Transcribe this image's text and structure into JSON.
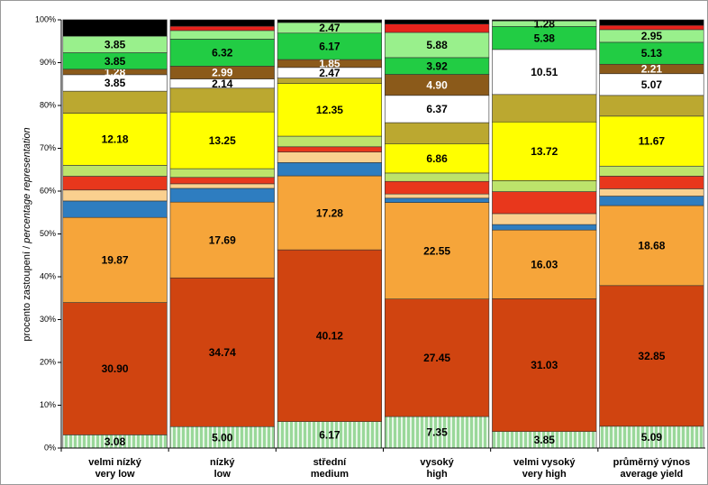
{
  "chart_data": {
    "type": "stacked_bar",
    "y_label": [
      "procento zastoupení /",
      "percentage representation"
    ],
    "categories": [
      [
        "velmi nízký",
        "very low"
      ],
      [
        "nízký",
        "low"
      ],
      [
        "střední",
        "medium"
      ],
      [
        "vysoký",
        "high"
      ],
      [
        "velmi vysoký",
        "very high"
      ],
      [
        "průměrný výnos",
        "average yield"
      ]
    ],
    "ylim": [
      0,
      100
    ],
    "yticks": [
      {
        "value": 0,
        "label": "0%"
      },
      {
        "value": 10,
        "label": "10%"
      },
      {
        "value": 20,
        "label": "20%"
      },
      {
        "value": 30,
        "label": "30%"
      },
      {
        "value": 40,
        "label": "40%"
      },
      {
        "value": 50,
        "label": "50%"
      },
      {
        "value": 60,
        "label": "60%"
      },
      {
        "value": 70,
        "label": "70%"
      },
      {
        "value": 80,
        "label": "80%"
      },
      {
        "value": 90,
        "label": "90%"
      },
      {
        "value": 100,
        "label": "100%"
      }
    ],
    "series": [
      {
        "color": "#9ad89a",
        "pattern": "stripes",
        "label_color": "#000",
        "values": [
          3.08,
          5.0,
          6.17,
          7.35,
          3.85,
          5.09
        ],
        "value_labels": [
          "3.08",
          "5.00",
          "6.17",
          "7.35",
          "3.85",
          "5.09"
        ]
      },
      {
        "color": "#d04410",
        "label_color": "#000",
        "values": [
          30.9,
          34.74,
          40.12,
          27.45,
          31.03,
          32.85
        ],
        "value_labels": [
          "30.90",
          "34.74",
          "40.12",
          "27.45",
          "31.03",
          "32.85"
        ]
      },
      {
        "color": "#f6a53a",
        "label_color": "#000",
        "values": [
          19.87,
          17.69,
          17.28,
          22.55,
          16.03,
          18.68
        ],
        "value_labels": [
          "19.87",
          "17.69",
          "17.28",
          "22.55",
          "16.03",
          "18.68"
        ]
      },
      {
        "color": "#2e7dc0",
        "values": [
          3.85,
          3.21,
          3.09,
          1.0,
          1.28,
          2.21
        ]
      },
      {
        "color": "#fad08f",
        "values": [
          2.56,
          1.07,
          2.47,
          0.98,
          2.56,
          1.72
        ]
      },
      {
        "color": "#e8371c",
        "values": [
          3.21,
          1.5,
          1.23,
          2.94,
          5.13,
          2.95
        ]
      },
      {
        "color": "#bde36b",
        "values": [
          2.56,
          2.03,
          2.47,
          1.96,
          2.56,
          2.34
        ]
      },
      {
        "color": "#ffff00",
        "label_color": "#000",
        "values": [
          12.18,
          13.25,
          12.35,
          6.86,
          13.72,
          11.67
        ],
        "value_labels": [
          "12.18",
          "13.25",
          "12.35",
          "6.86",
          "13.72",
          "11.67"
        ]
      },
      {
        "color": "#bba830",
        "values": [
          5.13,
          5.56,
          1.23,
          4.9,
          6.41,
          4.84
        ]
      },
      {
        "color": "#ffffff",
        "label_color": "#000",
        "values": [
          3.85,
          2.14,
          2.47,
          6.37,
          10.51,
          5.07
        ],
        "value_labels": [
          "3.85",
          "2.14",
          "2.47",
          "6.37",
          "10.51",
          "5.07"
        ]
      },
      {
        "color": "#8b5a1a",
        "label_color": "#fff",
        "values": [
          1.28,
          2.99,
          1.85,
          4.9,
          0,
          2.21
        ],
        "value_labels": [
          "1.28",
          "2.99",
          "1.85",
          "4.90",
          null,
          "2.21"
        ]
      },
      {
        "color": "#22cc44",
        "label_color": "#000",
        "values": [
          3.85,
          6.32,
          6.17,
          3.92,
          5.38,
          5.13
        ],
        "value_labels": [
          "3.85",
          "6.32",
          "6.17",
          "3.92",
          "5.38",
          "5.13"
        ]
      },
      {
        "color": "#99f08c",
        "label_color": "#000",
        "values": [
          3.85,
          2.0,
          2.47,
          5.88,
          1.28,
          2.95
        ],
        "value_labels": [
          "3.85",
          null,
          "2.47",
          "5.88",
          "1.28",
          "2.95"
        ]
      },
      {
        "color": "#e8231c",
        "values": [
          0,
          1.0,
          0,
          1.96,
          0,
          1.0
        ]
      },
      {
        "color": "#000000",
        "values": [
          3.85,
          1.5,
          0.63,
          0.98,
          0.26,
          1.29
        ]
      }
    ]
  }
}
